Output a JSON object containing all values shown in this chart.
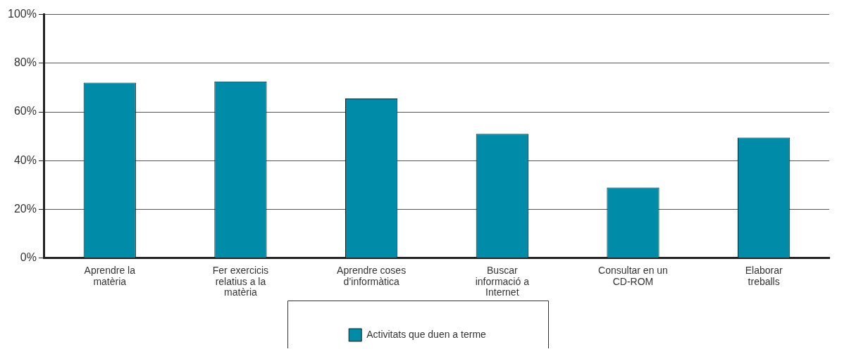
{
  "chart_data": {
    "type": "bar",
    "categories": [
      "Aprendre la matèria",
      "Fer exercicis relatius a la matèria",
      "Aprendre coses d’informàtica",
      "Buscar informació a Internet",
      "Consultar en un CD-ROM",
      "Elaborar treballs"
    ],
    "series": [
      {
        "name": "Activitats que duen a terme",
        "color": "#008ba8",
        "values": [
          72,
          72.5,
          65.5,
          51,
          29,
          49.5
        ]
      }
    ],
    "ylim": [
      0,
      100
    ],
    "yticks": [
      {
        "value": 0,
        "label": "0%"
      },
      {
        "value": 20,
        "label": "20%"
      },
      {
        "value": 40,
        "label": "40%"
      },
      {
        "value": 60,
        "label": "60%"
      },
      {
        "value": 80,
        "label": "80%"
      },
      {
        "value": 100,
        "label": "100%"
      }
    ],
    "grid": "y",
    "legend": "bottom"
  }
}
